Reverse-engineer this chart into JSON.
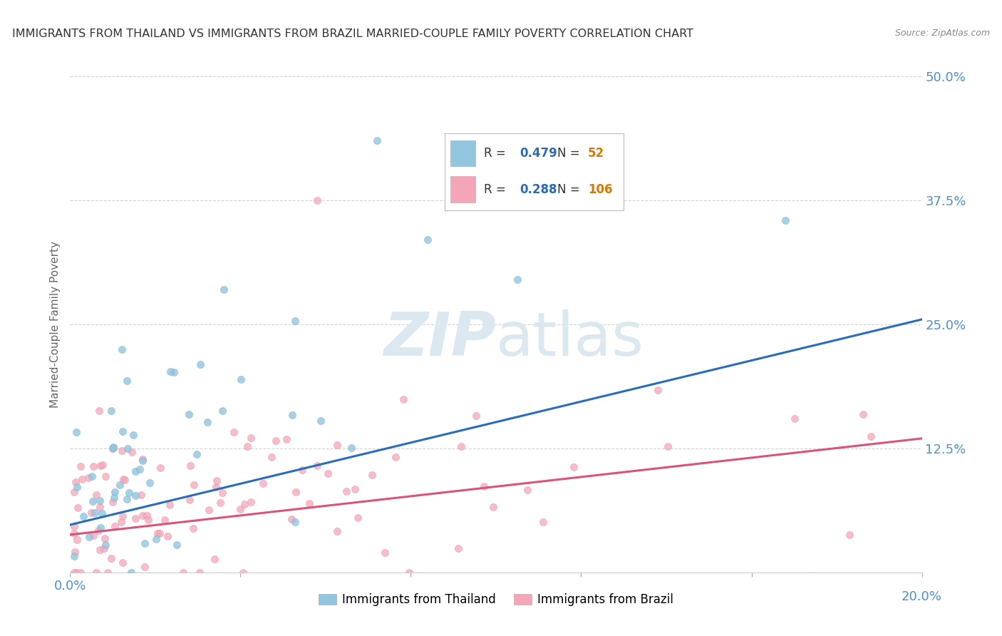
{
  "title": "IMMIGRANTS FROM THAILAND VS IMMIGRANTS FROM BRAZIL MARRIED-COUPLE FAMILY POVERTY CORRELATION CHART",
  "source": "Source: ZipAtlas.com",
  "ylabel": "Married-Couple Family Poverty",
  "xlabel_thailand": "Immigrants from Thailand",
  "xlabel_brazil": "Immigrants from Brazil",
  "xlim": [
    0.0,
    0.2
  ],
  "ylim": [
    0.0,
    0.5
  ],
  "yticks": [
    0.0,
    0.125,
    0.25,
    0.375,
    0.5
  ],
  "ytick_labels": [
    "",
    "12.5%",
    "25.0%",
    "37.5%",
    "50.0%"
  ],
  "xticks": [
    0.0,
    0.04,
    0.08,
    0.12,
    0.16,
    0.2
  ],
  "thailand_R": 0.479,
  "thailand_N": 52,
  "brazil_R": 0.288,
  "brazil_N": 106,
  "blue_color": "#92c5de",
  "pink_color": "#f4a6b8",
  "blue_line_color": "#2b6cb8",
  "pink_line_color": "#d9547a",
  "legend_R_color": "#2b6cb8",
  "legend_N_color": "#d97706",
  "watermark_color": "#dce8f0",
  "background_color": "#ffffff",
  "grid_color": "#cccccc",
  "thai_line_x0": 0.0,
  "thai_line_y0": 0.048,
  "thai_line_x1": 0.2,
  "thai_line_y1": 0.255,
  "brazil_line_x0": 0.0,
  "brazil_line_y0": 0.038,
  "brazil_line_x1": 0.2,
  "brazil_line_y1": 0.135
}
